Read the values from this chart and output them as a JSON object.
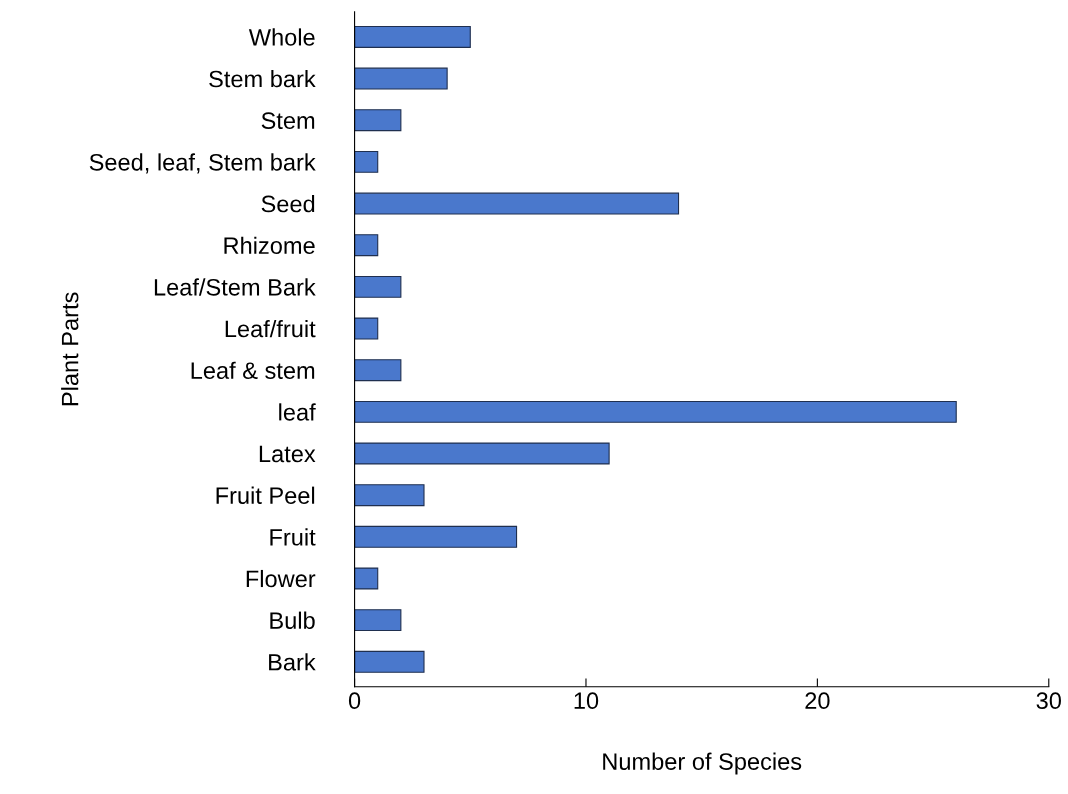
{
  "chart_data": {
    "type": "bar",
    "orientation": "horizontal",
    "xlabel": "Number of Species",
    "ylabel": "Plant Parts",
    "categories": [
      "Whole",
      "Stem bark",
      "Stem",
      "Seed, leaf, Stem bark",
      "Seed",
      "Rhizome",
      "Leaf/Stem Bark",
      "Leaf/fruit",
      "Leaf & stem",
      "leaf",
      "Latex",
      "Fruit Peel",
      "Fruit",
      "Flower",
      "Bulb",
      "Bark"
    ],
    "values": [
      5,
      4,
      2,
      1,
      14,
      1,
      2,
      1,
      2,
      26,
      11,
      3,
      7,
      1,
      2,
      3
    ],
    "color": "#4a78cc",
    "xlim": [
      0,
      30
    ],
    "xticks": [
      0,
      10,
      20,
      30
    ],
    "grid": false
  }
}
